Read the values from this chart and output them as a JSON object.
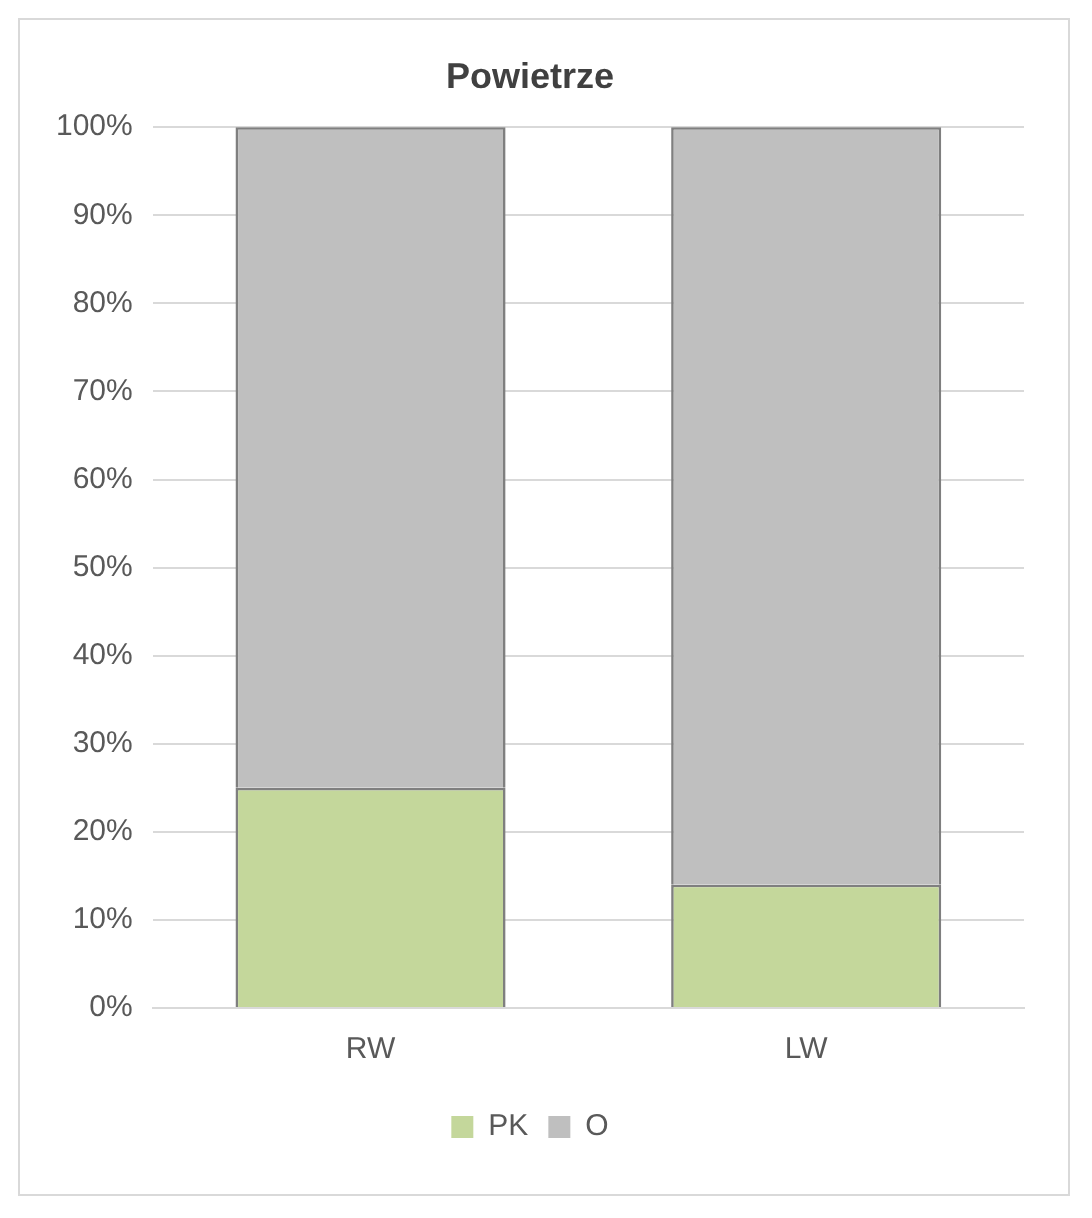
{
  "chart_data": {
    "type": "bar",
    "title": "Powietrze",
    "categories": [
      "RW",
      "LW"
    ],
    "stacked": true,
    "series": [
      {
        "name": "PK",
        "color": "#c4d79b",
        "values": [
          25,
          14
        ]
      },
      {
        "name": "O",
        "color": "#bfbfbf",
        "values": [
          75,
          86
        ]
      }
    ],
    "ylim": [
      0,
      100
    ],
    "yticks": [
      {
        "value": 0,
        "label": "0%"
      },
      {
        "value": 10,
        "label": "10%"
      },
      {
        "value": 20,
        "label": "20%"
      },
      {
        "value": 30,
        "label": "30%"
      },
      {
        "value": 40,
        "label": "40%"
      },
      {
        "value": 50,
        "label": "50%"
      },
      {
        "value": 60,
        "label": "60%"
      },
      {
        "value": 70,
        "label": "70%"
      },
      {
        "value": 80,
        "label": "80%"
      },
      {
        "value": 90,
        "label": "90%"
      },
      {
        "value": 100,
        "label": "100%"
      }
    ],
    "grid": "y",
    "legend": "bottom"
  }
}
